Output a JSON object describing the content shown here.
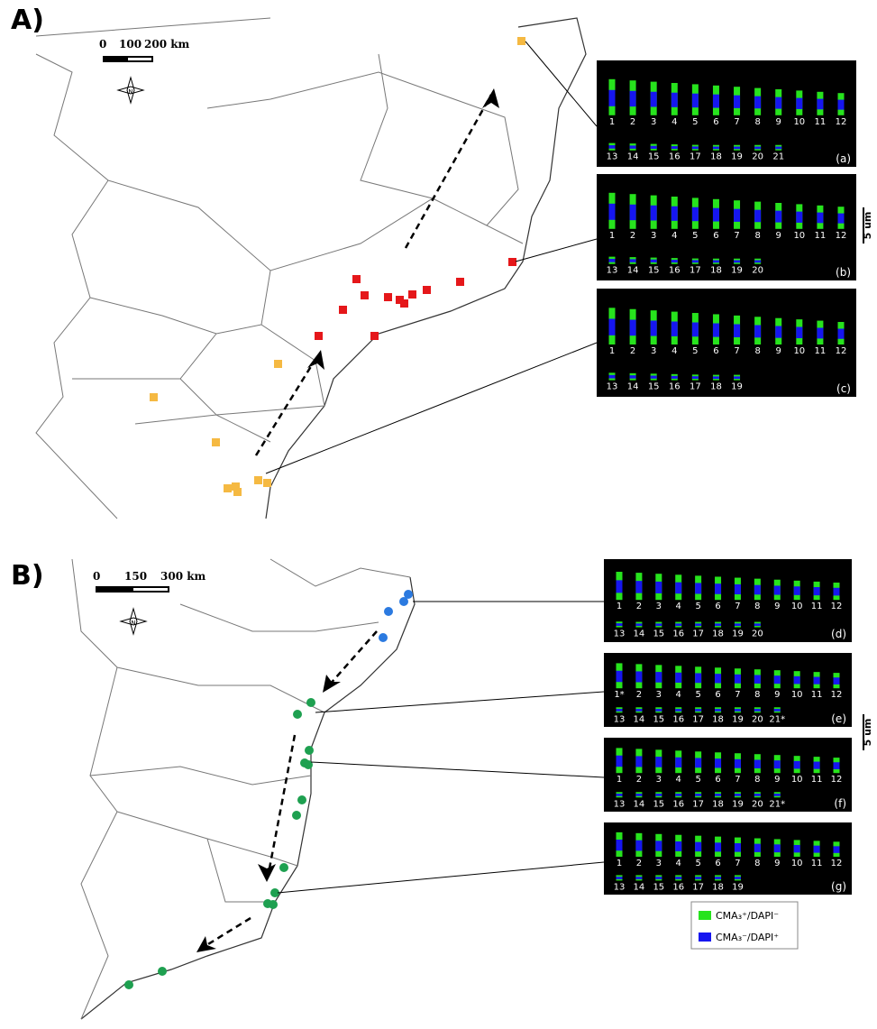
{
  "figure_labels": {
    "a": "A)",
    "b": "B)"
  },
  "scale_a": {
    "ticks": [
      "0",
      "100",
      "200 km"
    ],
    "north": "N"
  },
  "scale_b": {
    "ticks": [
      "0",
      "150",
      "300 km"
    ],
    "north": "N"
  },
  "size_bars": [
    "5 um",
    "5 um"
  ],
  "panels": [
    {
      "label": "(a)",
      "rows": [
        [
          "1",
          "2",
          "3",
          "4",
          "5",
          "6",
          "7",
          "8",
          "9",
          "10",
          "11",
          "12"
        ],
        [
          "13",
          "14",
          "15",
          "16",
          "17",
          "18",
          "19",
          "20",
          "21"
        ]
      ]
    },
    {
      "label": "(b)",
      "rows": [
        [
          "1",
          "2",
          "3",
          "4",
          "5",
          "6",
          "7",
          "8",
          "9",
          "10",
          "11",
          "12"
        ],
        [
          "13",
          "14",
          "15",
          "16",
          "17",
          "18",
          "19",
          "20"
        ]
      ]
    },
    {
      "label": "(c)",
      "rows": [
        [
          "1",
          "2",
          "3",
          "4",
          "5",
          "6",
          "7",
          "8",
          "9",
          "10",
          "11",
          "12"
        ],
        [
          "13",
          "14",
          "15",
          "16",
          "17",
          "18",
          "19"
        ]
      ]
    },
    {
      "label": "(d)",
      "rows": [
        [
          "1",
          "2",
          "3",
          "4",
          "5",
          "6",
          "7",
          "8",
          "9",
          "10",
          "11",
          "12"
        ],
        [
          "13",
          "14",
          "15",
          "16",
          "17",
          "18",
          "19",
          "20"
        ]
      ]
    },
    {
      "label": "(e)",
      "rows": [
        [
          "1*",
          "2",
          "3",
          "4",
          "5",
          "6",
          "7",
          "8",
          "9",
          "10",
          "11",
          "12"
        ],
        [
          "13",
          "14",
          "15",
          "16",
          "17",
          "18",
          "19",
          "20",
          "21*"
        ]
      ]
    },
    {
      "label": "(f)",
      "rows": [
        [
          "1",
          "2",
          "3",
          "4",
          "5",
          "6",
          "7",
          "8",
          "9",
          "10",
          "11",
          "12"
        ],
        [
          "13",
          "14",
          "15",
          "16",
          "17",
          "18",
          "19",
          "20",
          "21*"
        ]
      ]
    },
    {
      "label": "(g)",
      "rows": [
        [
          "1",
          "2",
          "3",
          "4",
          "5",
          "6",
          "7",
          "8",
          "9",
          "10",
          "11",
          "12"
        ],
        [
          "13",
          "14",
          "15",
          "16",
          "17",
          "18",
          "19"
        ]
      ]
    }
  ],
  "legend": [
    "CMA₃⁺/DAPI⁻",
    "CMA₃⁻/DAPI⁺"
  ]
}
